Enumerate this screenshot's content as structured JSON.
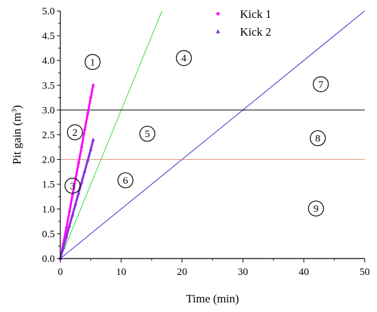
{
  "chart_data": {
    "type": "line",
    "xlabel": "Time (min)",
    "ylabel_main": "Pit gain (m",
    "ylabel_sup": "3",
    "ylabel_close": ")",
    "xlim": [
      0,
      50
    ],
    "ylim": [
      0,
      5.0
    ],
    "x_ticks": [
      0,
      10,
      20,
      30,
      40,
      50
    ],
    "x_tick_labels": [
      "0",
      "10",
      "20",
      "30",
      "40",
      "50"
    ],
    "y_ticks": [
      0,
      0.5,
      1.0,
      1.5,
      2.0,
      2.5,
      3.0,
      3.5,
      4.0,
      4.5,
      5.0
    ],
    "y_tick_labels": [
      "0.0",
      "0.5",
      "1.0",
      "1.5",
      "2.0",
      "2.5",
      "3.0",
      "3.5",
      "4.0",
      "4.5",
      "5.0"
    ],
    "grid": false,
    "legend_position": "top",
    "series": [
      {
        "name": "Kick 1",
        "color": "#ff00ff",
        "marker": "diamond",
        "x": [
          0,
          0.5,
          1.0,
          1.5,
          2.0,
          2.5,
          3.0,
          3.5,
          4.0,
          4.5,
          5.0,
          5.4
        ],
        "y": [
          0,
          0.3,
          0.62,
          0.95,
          1.28,
          1.6,
          1.93,
          2.25,
          2.6,
          2.92,
          3.25,
          3.5
        ]
      },
      {
        "name": "Kick 2",
        "color": "#8a2be2",
        "marker": "triangle",
        "x": [
          0,
          0.5,
          1.0,
          1.5,
          2.0,
          2.5,
          3.0,
          3.5,
          4.0,
          4.5,
          5.0,
          5.4
        ],
        "y": [
          0,
          0.22,
          0.44,
          0.66,
          0.88,
          1.1,
          1.32,
          1.54,
          1.76,
          1.98,
          2.2,
          2.4
        ]
      }
    ],
    "reference_lines": [
      {
        "kind": "diagonal",
        "color": "#33dd33",
        "x": [
          0,
          16.7
        ],
        "y": [
          0,
          5.0
        ]
      },
      {
        "kind": "diagonal",
        "color": "#2a2ad0",
        "x": [
          0,
          50
        ],
        "y": [
          0,
          5.0
        ]
      },
      {
        "kind": "horizontal",
        "color": "#000000",
        "y": 3.0
      },
      {
        "kind": "horizontal",
        "color": "#e08a70",
        "y": 2.0
      }
    ],
    "region_labels": [
      {
        "label": "1",
        "x": 5.3,
        "y": 3.97
      },
      {
        "label": "2",
        "x": 2.4,
        "y": 2.55
      },
      {
        "label": "3",
        "x": 2.0,
        "y": 1.47
      },
      {
        "label": "4",
        "x": 20.3,
        "y": 4.05
      },
      {
        "label": "5",
        "x": 14.3,
        "y": 2.52
      },
      {
        "label": "6",
        "x": 10.7,
        "y": 1.58
      },
      {
        "label": "7",
        "x": 42.8,
        "y": 3.52
      },
      {
        "label": "8",
        "x": 42.3,
        "y": 2.43
      },
      {
        "label": "9",
        "x": 42.0,
        "y": 1.01
      }
    ]
  }
}
